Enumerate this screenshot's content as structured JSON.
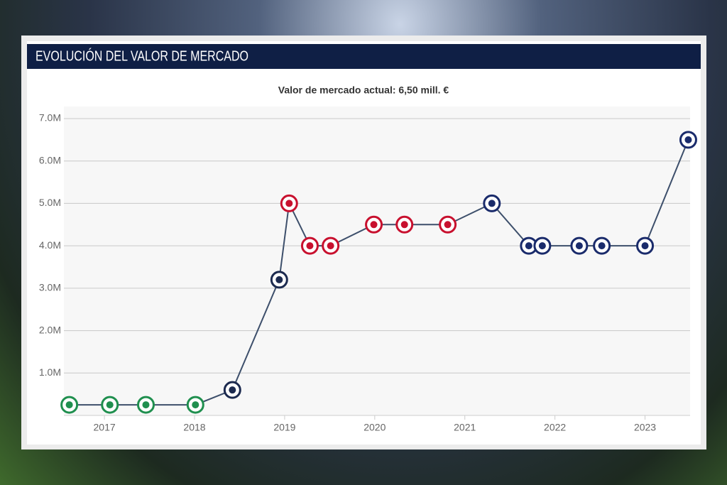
{
  "chart_data": {
    "type": "line",
    "title": "EVOLUCIÓN DEL VALOR DE MERCADO",
    "subtitle": "Valor de mercado actual: 6,50 mill. €",
    "x": [
      2016.61,
      2017.06,
      2017.46,
      2018.01,
      2018.42,
      2018.94,
      2019.05,
      2019.28,
      2019.51,
      2019.99,
      2020.33,
      2020.81,
      2021.3,
      2021.71,
      2021.86,
      2022.27,
      2022.52,
      2023.0,
      2023.48
    ],
    "values": [
      250000,
      250000,
      250000,
      250000,
      600000,
      3200000,
      5000000,
      4000000,
      4000000,
      4500000,
      4500000,
      4500000,
      5000000,
      4000000,
      4000000,
      4000000,
      4000000,
      4000000,
      6500000
    ],
    "color": "#3d4f6b",
    "marker_colors": [
      "#1f8f4e",
      "#1f8f4e",
      "#1f8f4e",
      "#1f8f4e",
      "#1c2a4f",
      "#1c2a4f",
      "#c8102e",
      "#c8102e",
      "#c8102e",
      "#c8102e",
      "#c8102e",
      "#c8102e",
      "#1a2b6b",
      "#1a2b6b",
      "#1a2b6b",
      "#1a2b6b",
      "#1a2b6b",
      "#1a2b6b",
      "#1a2b6b"
    ],
    "xlim": [
      2016.55,
      2023.5
    ],
    "xticks": [
      2017,
      2018,
      2019,
      2020,
      2021,
      2022,
      2023
    ],
    "ylim": [
      0,
      7000000
    ],
    "yticks": [
      {
        "value": 1000000,
        "label": "1.0M"
      },
      {
        "value": 2000000,
        "label": "2.0M"
      },
      {
        "value": 3000000,
        "label": "3.0M"
      },
      {
        "value": 4000000,
        "label": "4.0M"
      },
      {
        "value": 5000000,
        "label": "5.0M"
      },
      {
        "value": 6000000,
        "label": "6.0M"
      },
      {
        "value": 7000000,
        "label": "7.0M"
      }
    ],
    "grid": true
  }
}
